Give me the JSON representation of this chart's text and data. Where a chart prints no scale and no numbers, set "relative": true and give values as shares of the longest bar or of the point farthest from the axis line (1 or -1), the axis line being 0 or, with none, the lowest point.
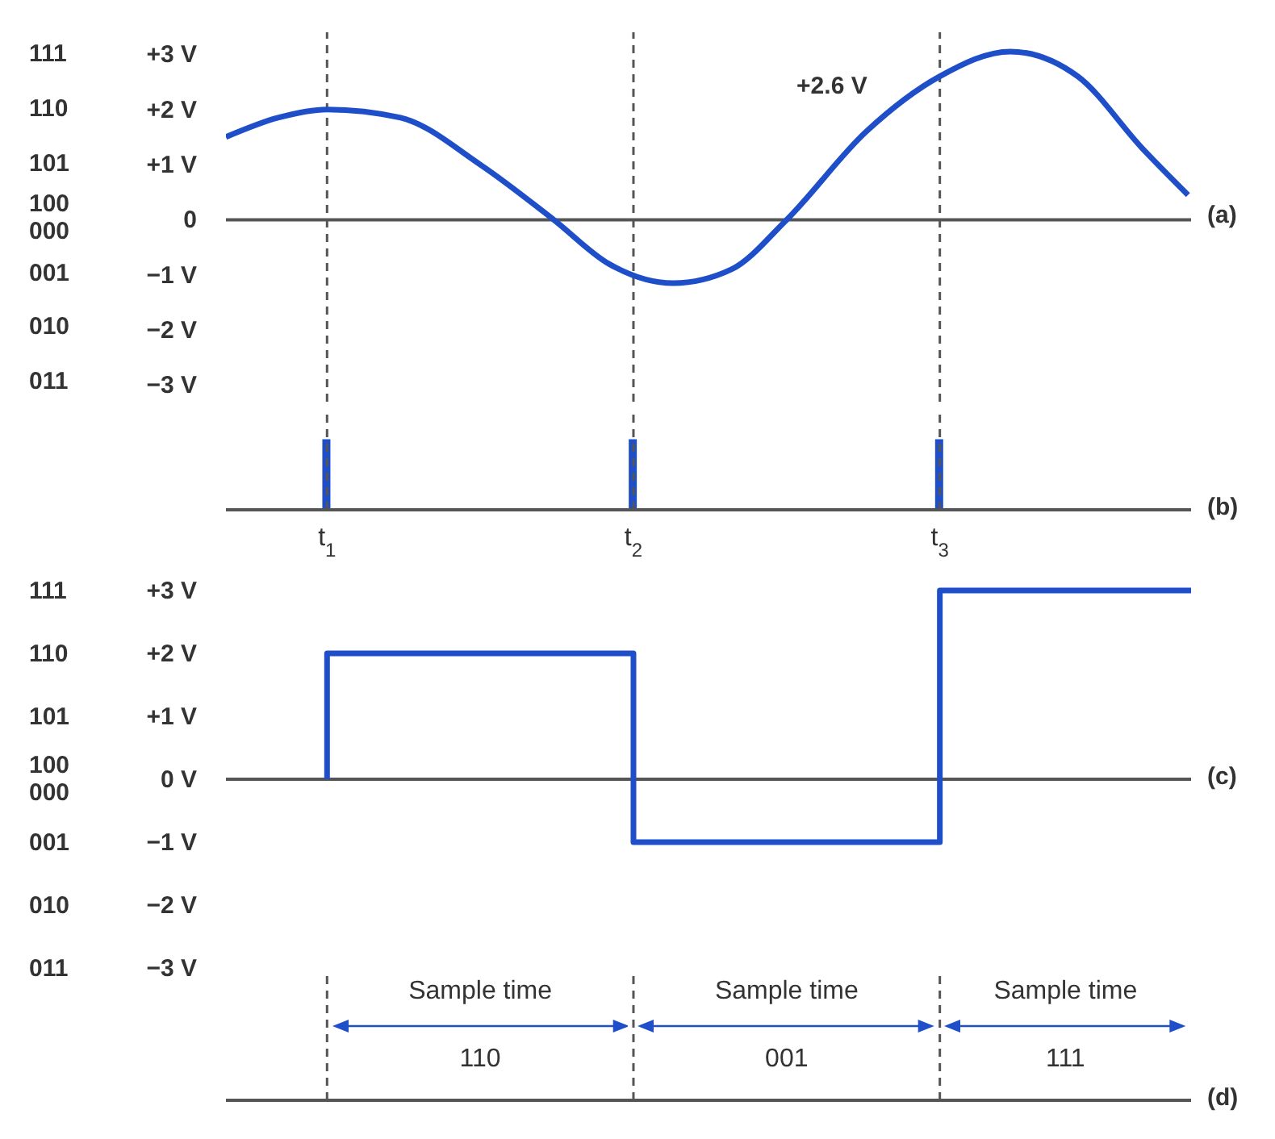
{
  "chart_data": [
    {
      "type": "line",
      "xlim": [
        0.67,
        3.82
      ],
      "ylim": [
        -3.3,
        3.4
      ],
      "yticks": [
        {
          "value": 3,
          "label": "+3 V"
        },
        {
          "value": 2,
          "label": "+2 V"
        },
        {
          "value": 1,
          "label": "+1 V"
        },
        0,
        {
          "value": -1,
          "label": "−1 V"
        },
        {
          "value": -2,
          "label": "−2 V"
        },
        {
          "value": -3,
          "label": "−3 V"
        }
      ],
      "tick_labels": "y",
      "series": [
        {
          "color": "#1f4fc8",
          "x": [
            0.67,
            0.84,
            1.0,
            1.24,
            1.5,
            1.74,
            1.92,
            2.13,
            2.32,
            2.5,
            2.76,
            3.0,
            3.23,
            3.45,
            3.66,
            3.81
          ],
          "values": [
            1.5,
            1.85,
            2.0,
            1.85,
            1.0,
            0.0,
            -0.8,
            -1.15,
            -0.9,
            0.0,
            1.6,
            2.6,
            3.05,
            2.6,
            1.3,
            0.45
          ]
        }
      ],
      "ref_lines": [
        {
          "axis": "y",
          "value": 0,
          "color": "#555555",
          "line_style": "solid"
        },
        {
          "axis": "x",
          "value": 1,
          "color": "#555555",
          "line_style": "dashed"
        },
        {
          "axis": "x",
          "value": 2,
          "color": "#555555",
          "line_style": "dashed"
        },
        {
          "axis": "x",
          "value": 3,
          "color": "#555555",
          "line_style": "dashed"
        }
      ],
      "annotations": [
        {
          "text": "+2.6 V",
          "x": 3,
          "y": 2.6
        },
        "111",
        "110",
        "101",
        "100\n000",
        "001",
        "010",
        "011",
        "(a)"
      ]
    },
    {
      "type": "bar",
      "relative": true,
      "xlim": [
        0.67,
        3.82
      ],
      "x": [
        1,
        2,
        3
      ],
      "values": [
        1,
        1,
        1
      ],
      "color": "#1f4fc8",
      "xticks": [
        {
          "value": 1,
          "label": "t$_{1}$"
        },
        {
          "value": 2,
          "label": "t$_{2}$"
        },
        {
          "value": 3,
          "label": "t$_{3}$"
        }
      ],
      "tick_labels": "x",
      "ref_lines": [
        {
          "axis": "x",
          "value": 1,
          "color": "#555555",
          "line_style": "dashed"
        },
        {
          "axis": "x",
          "value": 2,
          "color": "#555555",
          "line_style": "dashed"
        },
        {
          "axis": "x",
          "value": 3,
          "color": "#555555",
          "line_style": "dashed"
        }
      ],
      "annotations": [
        "(b)"
      ]
    },
    {
      "type": "step",
      "xlim": [
        0.67,
        3.82
      ],
      "ylim": [
        -5.1,
        3
      ],
      "yticks": [
        {
          "value": 3,
          "label": "+3 V"
        },
        {
          "value": 2,
          "label": "+2 V"
        },
        {
          "value": 1,
          "label": "+1 V"
        },
        {
          "value": 0,
          "label": "0 V"
        },
        {
          "value": -1,
          "label": "−1 V"
        },
        {
          "value": -2,
          "label": "−2 V"
        },
        {
          "value": -3,
          "label": "−3 V"
        }
      ],
      "tick_labels": "y",
      "x": [
        1,
        1,
        2,
        3,
        3.82
      ],
      "values": [
        0,
        2,
        -1,
        3,
        3
      ],
      "color": "#1f4fc8",
      "ref_lines": [
        {
          "axis": "y",
          "value": 0,
          "color": "#555555",
          "line_style": "solid"
        },
        {
          "axis": "x",
          "value": 1,
          "color": "#555555",
          "line_style": "dashed"
        },
        {
          "axis": "x",
          "value": 2,
          "color": "#555555",
          "line_style": "dashed"
        },
        {
          "axis": "x",
          "value": 3,
          "color": "#555555",
          "line_style": "dashed"
        }
      ],
      "annotations": [
        "111",
        "110",
        "101",
        "100\n000",
        "001",
        "010",
        "011",
        "Sample time",
        "Sample time",
        "Sample time",
        "110",
        "001",
        "111",
        "(c)",
        "(d)"
      ]
    }
  ]
}
